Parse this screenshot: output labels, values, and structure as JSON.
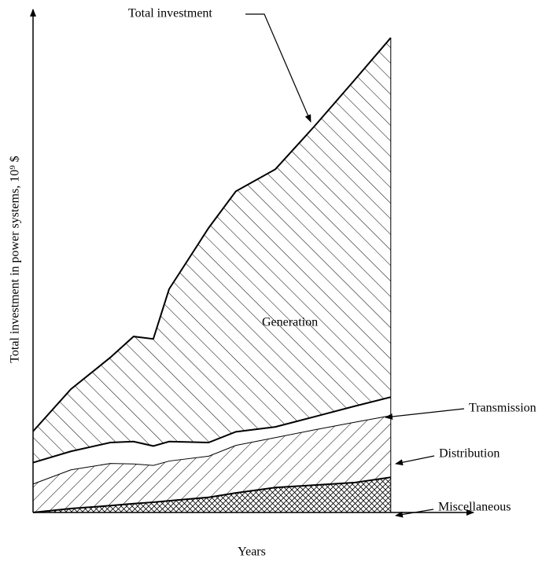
{
  "chart_data": {
    "type": "stacked_area",
    "xlabel": "Years",
    "ylabel": "Total investment in power systems, 10⁹ $",
    "annotation": "Total investment",
    "x": [
      0,
      8.6,
      17.6,
      22.9,
      27.4,
      31,
      40,
      46.2,
      55.2,
      64.2,
      73.1,
      81.5
    ],
    "xlim": [
      0,
      100
    ],
    "ylim": [
      0,
      100
    ],
    "series": [
      {
        "name": "Miscellaneous",
        "color": "#000000",
        "pattern": "crosshatch",
        "values": [
          0,
          0.8,
          1.4,
          1.8,
          2.1,
          2.4,
          3.1,
          4.0,
          5.1,
          5.6,
          6.1,
          7.2
        ]
      },
      {
        "name": "Distribution",
        "color": "#000000",
        "pattern": "forward-diagonal",
        "values": [
          5.9,
          8.0,
          8.7,
          8.2,
          7.6,
          8.2,
          8.5,
          9.8,
          10.3,
          11.4,
          12.4,
          12.7
        ]
      },
      {
        "name": "Transmission",
        "color": "#000000",
        "pattern": "none",
        "values": [
          4.3,
          3.7,
          4.2,
          4.5,
          3.9,
          3.9,
          2.7,
          2.7,
          2.1,
          2.6,
          3.2,
          3.7
        ]
      },
      {
        "name": "Generation",
        "color": "#000000",
        "pattern": "back-diagonal",
        "values": [
          6.4,
          12.7,
          17.4,
          21.5,
          21.9,
          31.2,
          43.9,
          49.2,
          52.7,
          59.5,
          66.6,
          73.5
        ]
      }
    ]
  }
}
